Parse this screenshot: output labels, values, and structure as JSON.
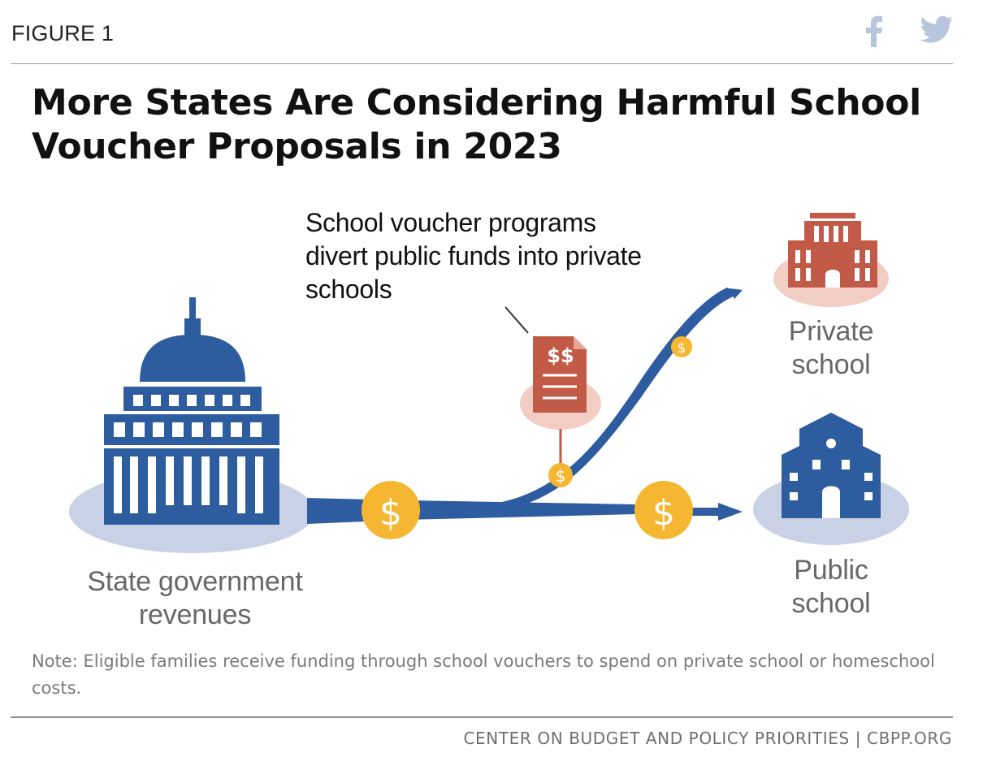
{
  "header": {
    "figure_label": "FIGURE 1",
    "share_icons": [
      "facebook-icon",
      "twitter-icon"
    ]
  },
  "title": "More States Are Considering Harmful School Voucher Proposals in 2023",
  "diagram": {
    "callout": "School voucher programs divert public funds into private schools",
    "voucher_document_text": "$$",
    "coin_symbol": "$",
    "nodes": {
      "state": "State government revenues",
      "private": "Private school",
      "public": "Public school"
    },
    "colors": {
      "flow_blue": "#2d5ca1",
      "capitol_blue": "#2e5d9f",
      "node_oval": "#c9d1e6",
      "private_red": "#c25a48",
      "private_oval": "#f1cdc4",
      "coin_gold": "#f5b731"
    }
  },
  "note": "Note: Eligible families receive funding through school vouchers to spend on private school or homeschool costs.",
  "source": "CENTER ON BUDGET AND POLICY PRIORITIES | CBPP.ORG"
}
